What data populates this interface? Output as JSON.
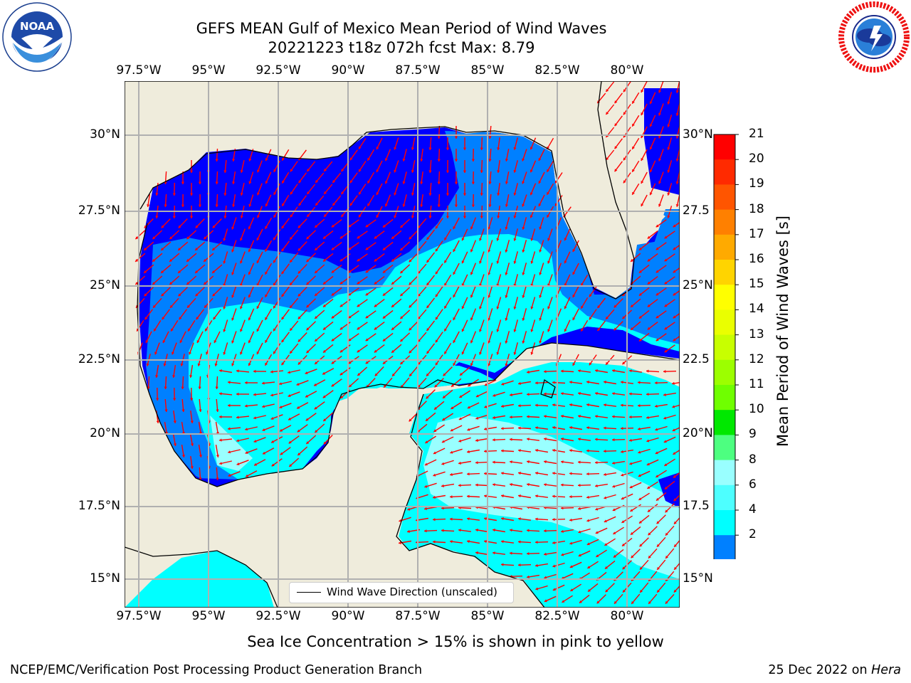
{
  "title": {
    "line1": "GEFS MEAN Gulf of Mexico Mean Period of Wind Waves",
    "line2": "20221223 t18z 072h fcst   Max: 8.79"
  },
  "map": {
    "lon_ticks_top": [
      "97.5°W",
      "95°W",
      "92.5°W",
      "90°W",
      "87.5°W",
      "85°W",
      "82.5°W",
      "80°W"
    ],
    "lon_ticks_bottom": [
      "97.5°W",
      "95°W",
      "92.5°W",
      "90°W",
      "87.5°W",
      "85°W",
      "82.5°W",
      "80°W"
    ],
    "lat_ticks_left": [
      "30°N",
      "27.5°N",
      "25°N",
      "22.5°N",
      "20°N",
      "17.5°N",
      "15°N"
    ],
    "lat_ticks_right": [
      "30°N",
      "27.5",
      "25°N",
      "22.5",
      "20°N",
      "17.5",
      "15°N"
    ],
    "legend_label": "Wind Wave Direction (unscaled)",
    "land_color": "#efecdc",
    "arrow_color": "#ff0000"
  },
  "colorbar": {
    "label": "Mean Period of Wind Waves [s]",
    "ticks": [
      "21",
      "20",
      "19",
      "18",
      "17",
      "16",
      "15",
      "14",
      "13",
      "12",
      "11",
      "10",
      "9",
      "8",
      "6",
      "4",
      "2"
    ],
    "colors": [
      "#ff0000",
      "#ff2a00",
      "#ff5500",
      "#ff8000",
      "#ffaa00",
      "#ffd400",
      "#ffff00",
      "#eaff00",
      "#c8ff00",
      "#9cff00",
      "#6fff00",
      "#00e800",
      "#4dff80",
      "#99ffff",
      "#4dffff",
      "#00ffff",
      "#0080ff"
    ],
    "extend_color": "#0000ff"
  },
  "logos": {
    "noaa_text": "NOAA",
    "noaa_ring": "NATIONAL OCEANIC AND ATMOSPHERIC ADMINISTRATION · U.S. DEPARTMENT OF COMMERCE",
    "nws_ring": "NATIONAL WEATHER SERVICE"
  },
  "notes": {
    "sea_ice": "Sea Ice Concentration > 15% is shown in pink to yellow"
  },
  "footer": {
    "left": "NCEP/EMC/Verification Post Processing Product Generation Branch",
    "date": "25 Dec 2022 on ",
    "machine": "Hera"
  }
}
